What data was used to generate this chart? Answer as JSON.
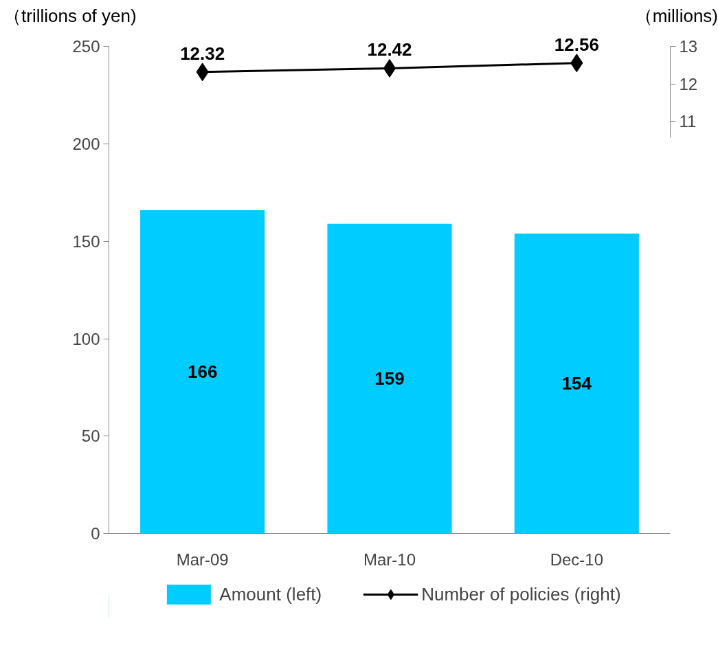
{
  "chart_data": {
    "type": "bar",
    "categories": [
      "Mar-09",
      "Mar-10",
      "Dec-10"
    ],
    "ylabel": "（trillions of yen)",
    "y2label": "（millions)",
    "ylim": [
      0,
      250
    ],
    "yticks": [
      0,
      50,
      100,
      150,
      200,
      250
    ],
    "y2lim": [
      0,
      13
    ],
    "y2ticks": [
      11,
      12,
      13
    ],
    "series": [
      {
        "name": "Amount (left)",
        "color": "#00ccff",
        "values": [
          166,
          159,
          154
        ]
      },
      {
        "name": "Number of policies (right)",
        "type": "line",
        "axis": "y2",
        "color": "#000000",
        "marker": "diamond",
        "values": [
          12.32,
          12.42,
          12.56
        ]
      }
    ],
    "data_labels": true,
    "grid": false,
    "legend": "bottom"
  }
}
